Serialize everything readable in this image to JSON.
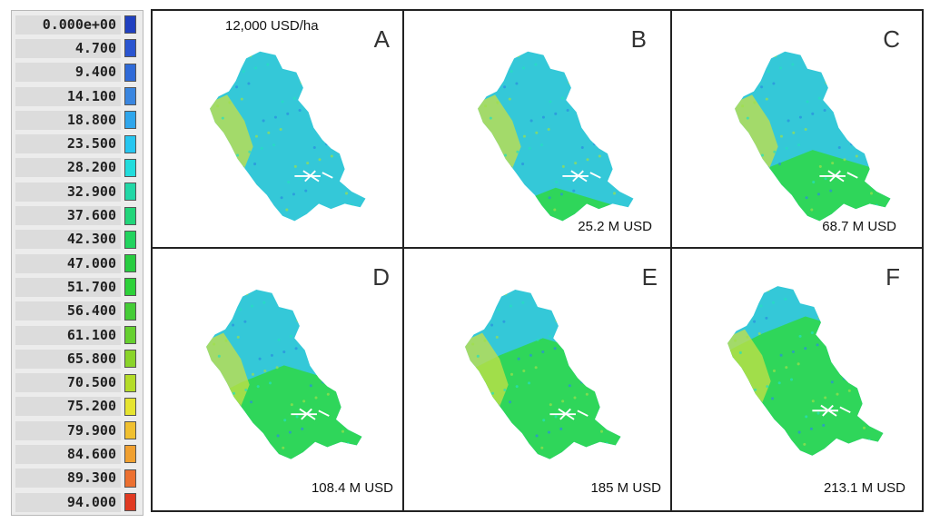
{
  "legend": {
    "values": [
      "0.000e+00",
      "4.700",
      "9.400",
      "14.100",
      "18.800",
      "23.500",
      "28.200",
      "32.900",
      "37.600",
      "42.300",
      "47.000",
      "51.700",
      "56.400",
      "61.100",
      "65.800",
      "70.500",
      "75.200",
      "79.900",
      "84.600",
      "89.300",
      "94.000"
    ],
    "colors": [
      "#2040c0",
      "#2a55d0",
      "#2f6ad8",
      "#3a86e0",
      "#2fa6ec",
      "#26c6f0",
      "#22dcdc",
      "#22d7a6",
      "#22d57a",
      "#22d35e",
      "#27cc40",
      "#2ed13a",
      "#44cc36",
      "#66d030",
      "#8ad42a",
      "#b4dc28",
      "#e6e430",
      "#f0c030",
      "#f0a030",
      "#ec7030",
      "#e03a22"
    ]
  },
  "panels": [
    {
      "letter": "A",
      "header": "12,000 USD/ha",
      "cost": "",
      "spread": 0.0
    },
    {
      "letter": "B",
      "header": "",
      "cost": "25.2 M USD",
      "spread": 0.3
    },
    {
      "letter": "C",
      "header": "",
      "cost": "68.7 M USD",
      "spread": 0.55
    },
    {
      "letter": "D",
      "header": "",
      "cost": "108.4 M USD",
      "spread": 0.7
    },
    {
      "letter": "E",
      "header": "",
      "cost": "185 M USD",
      "spread": 0.88
    },
    {
      "letter": "F",
      "header": "",
      "cost": "213.1 M USD",
      "spread": 1.0
    }
  ]
}
